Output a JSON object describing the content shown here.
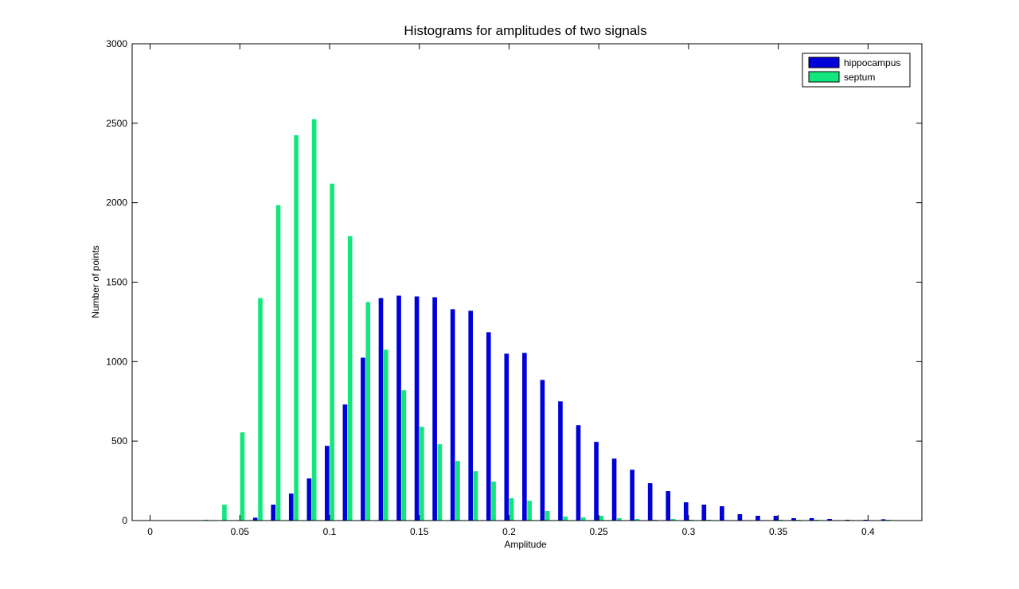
{
  "chart_data": {
    "type": "bar",
    "title": "Histograms for amplitudes of two signals",
    "xlabel": "Amplitude",
    "ylabel": "Number of points",
    "xlim": [
      -0.01,
      0.43
    ],
    "ylim": [
      0,
      3000
    ],
    "xticks": [
      0,
      0.05,
      0.1,
      0.15,
      0.2,
      0.25,
      0.3,
      0.35,
      0.4
    ],
    "xtick_labels": [
      "0",
      "0.05",
      "0.1",
      "0.15",
      "0.2",
      "0.25",
      "0.3",
      "0.35",
      "0.4"
    ],
    "yticks": [
      0,
      500,
      1000,
      1500,
      2000,
      2500,
      3000
    ],
    "ytick_labels": [
      "0",
      "500",
      "1000",
      "1500",
      "2000",
      "2500",
      "3000"
    ],
    "grid": false,
    "legend_position": "top-right",
    "x": [
      0.03,
      0.04,
      0.05,
      0.06,
      0.07,
      0.08,
      0.09,
      0.1,
      0.11,
      0.12,
      0.13,
      0.14,
      0.15,
      0.16,
      0.17,
      0.18,
      0.19,
      0.2,
      0.21,
      0.22,
      0.23,
      0.24,
      0.25,
      0.26,
      0.27,
      0.28,
      0.29,
      0.3,
      0.31,
      0.32,
      0.33,
      0.34,
      0.35,
      0.36,
      0.37,
      0.38,
      0.39,
      0.4,
      0.41
    ],
    "series": [
      {
        "name": "hippocampus",
        "color": "#0000d8",
        "values": [
          0,
          0,
          2,
          18,
          100,
          170,
          265,
          470,
          730,
          1025,
          1400,
          1415,
          1410,
          1405,
          1330,
          1320,
          1185,
          1050,
          1055,
          885,
          750,
          600,
          495,
          390,
          320,
          235,
          185,
          115,
          100,
          90,
          40,
          30,
          30,
          15,
          15,
          10,
          5,
          5,
          8
        ]
      },
      {
        "name": "septum",
        "color": "#14e67e",
        "values": [
          5,
          100,
          555,
          1400,
          1985,
          2425,
          2525,
          2120,
          1790,
          1375,
          1075,
          820,
          590,
          480,
          375,
          310,
          245,
          140,
          125,
          60,
          25,
          20,
          30,
          15,
          10,
          5,
          10,
          5,
          5,
          3,
          3,
          3,
          5,
          5,
          5,
          3,
          3,
          3,
          5
        ]
      }
    ]
  }
}
